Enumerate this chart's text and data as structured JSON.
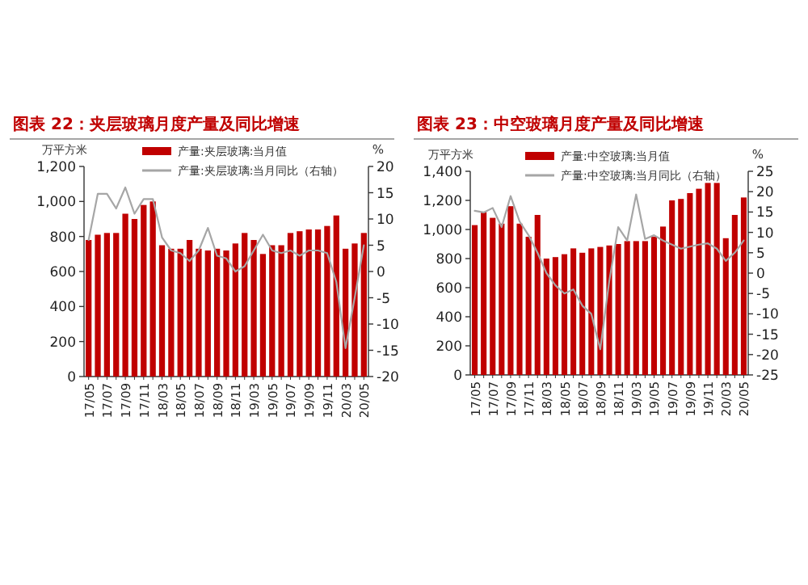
{
  "chart_data": [
    {
      "type": "bar",
      "title": "图表 22：夹层玻璃月度产量及同比增速",
      "ylabel": "万平方米",
      "y2label": "%",
      "legend": "top",
      "categories": [
        "17/05",
        null,
        "17/07",
        null,
        "17/09",
        null,
        "17/11",
        null,
        "18/03",
        null,
        "18/05",
        null,
        "18/07",
        null,
        "18/09",
        null,
        "18/11",
        null,
        "19/03",
        null,
        "19/05",
        null,
        "19/07",
        null,
        "19/09",
        null,
        "19/11",
        null,
        "20/03",
        null,
        "20/05"
      ],
      "ylim": [
        0,
        1200
      ],
      "yticks": [
        0,
        200,
        400,
        600,
        800,
        {
          "value": 1000,
          "label": "1,000"
        },
        {
          "value": 1200,
          "label": "1,200"
        }
      ],
      "y2lim": [
        -20,
        20
      ],
      "y2ticks": [
        -20,
        -15,
        -10,
        -5,
        0,
        5,
        10,
        15,
        20
      ],
      "series": [
        {
          "name": "产量:夹层玻璃:当月值",
          "color": "#c00000",
          "values": [
            780,
            810,
            820,
            820,
            930,
            900,
            980,
            1000,
            750,
            730,
            730,
            780,
            730,
            720,
            730,
            720,
            760,
            820,
            780,
            700,
            750,
            750,
            820,
            830,
            840,
            840,
            860,
            920,
            730,
            760,
            820
          ]
        },
        {
          "name": "产量:夹层玻璃:当月同比（右轴）",
          "type": "line",
          "axis": "y2",
          "color": "#a6a6a6",
          "values": [
            6,
            14.8,
            14.8,
            12,
            16,
            11,
            13.8,
            13.8,
            6.5,
            4,
            3.5,
            2,
            4,
            8.3,
            3,
            2.5,
            0,
            1,
            4,
            7,
            4,
            3.5,
            4,
            3,
            4,
            4,
            3.5,
            -2,
            -14.6,
            -5,
            5
          ]
        }
      ]
    },
    {
      "type": "bar",
      "title": "图表 23：中空玻璃月度产量及同比增速",
      "ylabel": "万平方米",
      "y2label": "%",
      "legend": "top",
      "categories": [
        "17/05",
        null,
        "17/07",
        null,
        "17/09",
        null,
        "17/11",
        null,
        "18/03",
        null,
        "18/05",
        null,
        "18/07",
        null,
        "18/09",
        null,
        "18/11",
        null,
        "19/03",
        null,
        "19/05",
        null,
        "19/07",
        null,
        "19/09",
        null,
        "19/11",
        null,
        "20/03",
        null,
        "20/05"
      ],
      "ylim": [
        0,
        1400
      ],
      "yticks": [
        0,
        200,
        400,
        600,
        800,
        {
          "value": 1000,
          "label": "1,000"
        },
        {
          "value": 1200,
          "label": "1,200"
        },
        {
          "value": 1400,
          "label": "1,400"
        }
      ],
      "y2lim": [
        -25,
        25
      ],
      "y2ticks": [
        -25,
        -20,
        -15,
        -10,
        -5,
        0,
        5,
        10,
        15,
        20,
        25
      ],
      "series": [
        {
          "name": "产量:中空玻璃:当月值",
          "color": "#c00000",
          "values": [
            1030,
            1120,
            1080,
            1040,
            1160,
            1040,
            950,
            1100,
            800,
            810,
            830,
            870,
            840,
            870,
            880,
            890,
            900,
            920,
            920,
            920,
            950,
            1020,
            1200,
            1210,
            1250,
            1280,
            1320,
            1320,
            940,
            1100,
            1220
          ]
        },
        {
          "name": "产量:中空玻璃:当月同比（右轴）",
          "type": "line",
          "axis": "y2",
          "color": "#a6a6a6",
          "values": [
            15.3,
            14.9,
            16,
            11.3,
            18.9,
            12.7,
            9.3,
            5,
            0,
            -3,
            -5,
            -4,
            -8,
            -10,
            -18.7,
            -2,
            11.3,
            8,
            19.3,
            8.4,
            9.3,
            8,
            7,
            6,
            6.5,
            7,
            7.3,
            6,
            3,
            5,
            8
          ]
        }
      ]
    }
  ]
}
